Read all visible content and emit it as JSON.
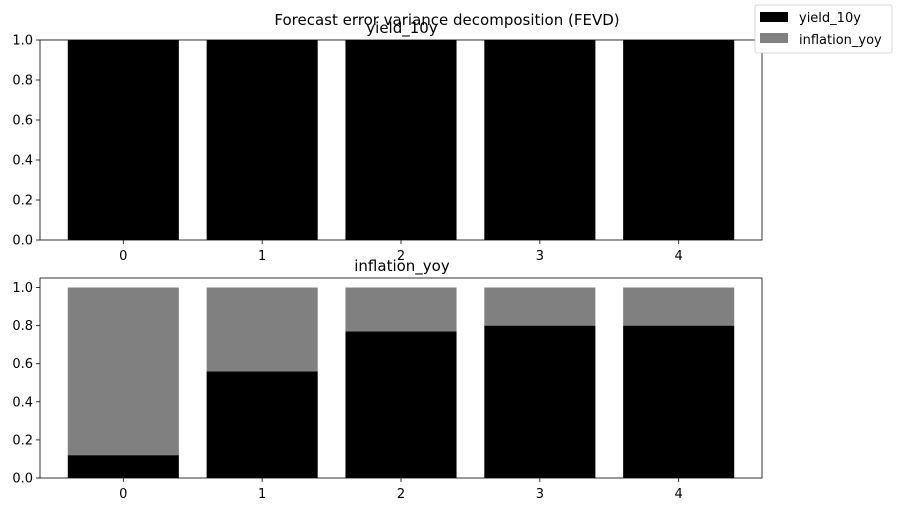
{
  "figure": {
    "suptitle": "Forecast error variance decomposition (FEVD)"
  },
  "legend": {
    "placement": "top-right (outside axes)",
    "entries": [
      {
        "label": "yield_10y",
        "color": "#000000"
      },
      {
        "label": "inflation_yoy",
        "color": "#808080"
      }
    ]
  },
  "chart_data": [
    {
      "type": "bar",
      "stacked": true,
      "title": "yield_10y",
      "categories": [
        "0",
        "1",
        "2",
        "3",
        "4"
      ],
      "ylim": [
        0,
        1.0
      ],
      "yticks": [
        "0.0",
        "0.2",
        "0.4",
        "0.6",
        "0.8",
        "1.0"
      ],
      "series": [
        {
          "name": "yield_10y",
          "color": "#000000",
          "values": [
            1.0,
            1.0,
            1.0,
            1.0,
            1.0
          ]
        },
        {
          "name": "inflation_yoy",
          "color": "#808080",
          "values": [
            0.0,
            0.0,
            0.0,
            0.0,
            0.0
          ]
        }
      ]
    },
    {
      "type": "bar",
      "stacked": true,
      "title": "inflation_yoy",
      "categories": [
        "0",
        "1",
        "2",
        "3",
        "4"
      ],
      "ylim": [
        0,
        1.05
      ],
      "yticks": [
        "0.0",
        "0.2",
        "0.4",
        "0.6",
        "0.8",
        "1.0"
      ],
      "series": [
        {
          "name": "yield_10y",
          "color": "#000000",
          "values": [
            0.12,
            0.56,
            0.77,
            0.8,
            0.8
          ]
        },
        {
          "name": "inflation_yoy",
          "color": "#808080",
          "values": [
            0.88,
            0.44,
            0.23,
            0.2,
            0.2
          ]
        }
      ]
    }
  ]
}
